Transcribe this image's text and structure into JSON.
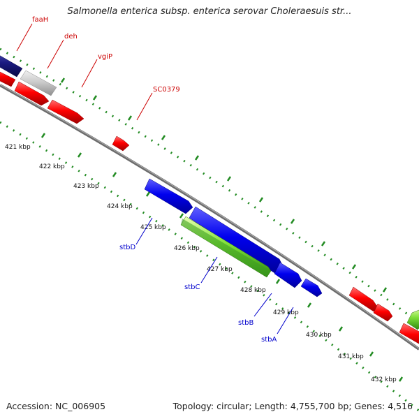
{
  "title": "Salmonella enterica subsp. enterica serovar Choleraesuis str...",
  "footer": {
    "accession_label": "Accession: NC_006905",
    "summary": "Topology: circular; Length: 4,755,700 bp; Genes: 4,516"
  },
  "colors": {
    "forward_gene": "#ff0000",
    "reverse_gene": "#0000ee",
    "rna_gene": "#7fe03a",
    "highlight_gene": "#1a1a80",
    "pseudo_gene": "#cccccc",
    "backbone": "#888888",
    "tick": "#228b22",
    "label_forward": "#cc0000",
    "label_reverse": "#0000cc"
  },
  "kbp_ticks": [
    "421 kbp",
    "422 kbp",
    "423 kbp",
    "424 kbp",
    "425 kbp",
    "426 kbp",
    "427 kbp",
    "428 kbp",
    "429 kbp",
    "430 kbp",
    "431 kbp",
    "432 kbp"
  ],
  "gene_labels": {
    "faaH": "faaH",
    "deh": "deh",
    "vgiP": "vgiP",
    "SC0379": "SC0379",
    "stbD": "stbD",
    "stbC": "stbC",
    "stbB": "stbB",
    "stbA": "stbA"
  }
}
